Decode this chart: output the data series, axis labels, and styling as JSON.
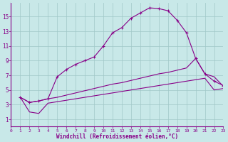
{
  "xlabel": "Windchill (Refroidissement éolien,°C)",
  "bg_color": "#c8e8e8",
  "grid_color": "#a0c8c8",
  "line_color": "#880088",
  "xlim": [
    0,
    23
  ],
  "ylim": [
    0,
    17
  ],
  "xticks": [
    0,
    1,
    2,
    3,
    4,
    5,
    6,
    7,
    8,
    9,
    10,
    11,
    12,
    13,
    14,
    15,
    16,
    17,
    18,
    19,
    20,
    21,
    22,
    23
  ],
  "yticks": [
    1,
    3,
    5,
    7,
    9,
    11,
    13,
    15
  ],
  "line1_x": [
    1,
    2,
    3,
    4,
    5,
    6,
    7,
    8,
    9,
    10,
    11,
    12,
    13,
    14,
    15,
    16,
    17,
    18,
    19,
    20,
    21,
    22,
    23
  ],
  "line1_y": [
    4.0,
    3.3,
    3.5,
    3.8,
    6.8,
    7.8,
    8.5,
    9.0,
    9.5,
    11.0,
    12.8,
    13.5,
    14.8,
    15.5,
    16.2,
    16.1,
    15.8,
    14.5,
    12.8,
    9.3,
    7.2,
    6.2,
    5.6
  ],
  "line2_x": [
    1,
    2,
    3,
    4,
    5,
    6,
    7,
    8,
    9,
    10,
    11,
    12,
    13,
    14,
    15,
    16,
    17,
    18,
    19,
    20,
    21,
    22,
    23
  ],
  "line2_y": [
    4.0,
    3.3,
    3.5,
    3.8,
    4.0,
    4.3,
    4.6,
    4.9,
    5.2,
    5.5,
    5.8,
    6.0,
    6.3,
    6.6,
    6.9,
    7.2,
    7.4,
    7.7,
    8.0,
    9.3,
    7.2,
    6.8,
    5.5
  ],
  "line3_x": [
    1,
    2,
    3,
    4,
    5,
    6,
    7,
    8,
    9,
    10,
    11,
    12,
    13,
    14,
    15,
    16,
    17,
    18,
    19,
    20,
    21,
    22,
    23
  ],
  "line3_y": [
    4.0,
    2.0,
    1.8,
    3.2,
    3.4,
    3.6,
    3.8,
    4.0,
    4.2,
    4.4,
    4.6,
    4.8,
    5.0,
    5.2,
    5.4,
    5.6,
    5.8,
    6.0,
    6.2,
    6.4,
    6.6,
    5.0,
    5.2
  ]
}
